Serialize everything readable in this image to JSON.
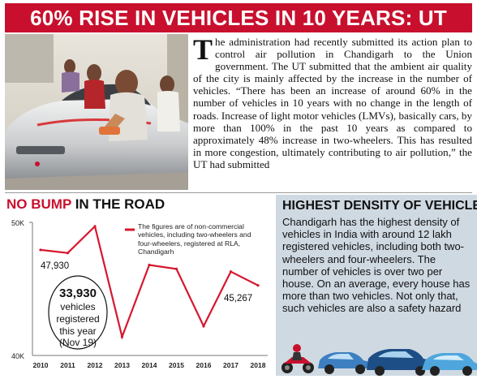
{
  "headline": "60% RISE IN VEHICLES IN 10 YEARS: UT",
  "intro": {
    "dropcap": "T",
    "text": "he administration had recently submitted its action plan to control air pollution in Chandigarh to the Union government. The UT submitted that the ambient air quality of the city is mainly affected by the increase in the number of vehicles. “There has been an increase of around 60% in the number of vehicles in 10 years with no change in the length of roads. Increase of light motor vehicles (LMVs), basically cars, by more than 100% in the past 10 years as compared to approximately 48% increase in two-wheelers. This has resulted in more congestion, ultimately contributing to air pollution,” the UT had submitted"
  },
  "chart_section": {
    "title_red": "NO BUMP",
    "title_black": " IN THE ROAD",
    "legend": "The figures are of non-commercial vehicles, including two-wheelers and four-wheelers, registered at RLA, Chandigarh",
    "annotation_first": "47,930",
    "annotation_last": "45,267",
    "bubble_value": "33,930",
    "bubble_line1": "vehicles",
    "bubble_line2": "registered",
    "bubble_line3": "this year",
    "bubble_line4": "(Nov 19)"
  },
  "chart_data": {
    "type": "line",
    "x": [
      "2010",
      "2011",
      "2012",
      "2013",
      "2014",
      "2015",
      "2016",
      "2017",
      "2018"
    ],
    "series": [
      {
        "values": [
          47930,
          47700,
          49700,
          41400,
          46800,
          46500,
          42200,
          46300,
          45267
        ]
      }
    ],
    "yticks": [
      "50K",
      "40K"
    ],
    "ylim": [
      40000,
      50000
    ],
    "line_color": "#d7172f",
    "grid": false
  },
  "density": {
    "title": "HIGHEST DENSITY OF VEHICLES",
    "text": "Chandigarh has the highest density of vehicles in India with around 12 lakh registered vehicles, including both two-wheelers and four-wheelers. The number of vehicles is over two per house. On an average, every house has more than two vehicles. Not only that, such vehicles are also a safety hazard"
  },
  "colors": {
    "accent": "#c8102e",
    "panel": "#cfd9e2"
  }
}
